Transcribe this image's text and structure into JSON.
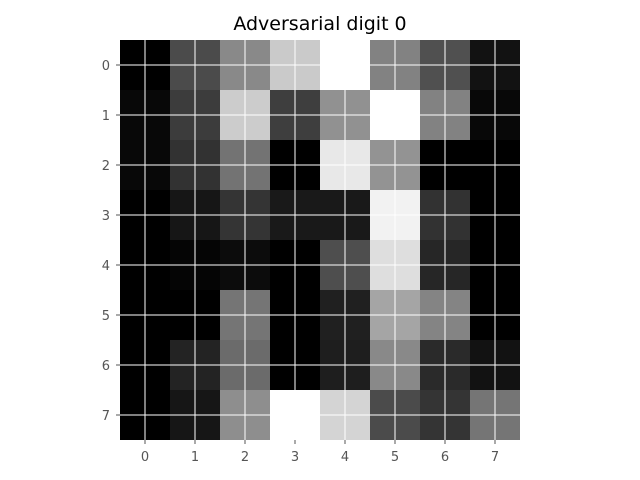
{
  "chart_data": {
    "type": "heatmap",
    "title": "Adversarial digit 0",
    "xlabel": "",
    "ylabel": "",
    "x_ticks": [
      "0",
      "1",
      "2",
      "3",
      "4",
      "5",
      "6",
      "7"
    ],
    "y_ticks": [
      "0",
      "1",
      "2",
      "3",
      "4",
      "5",
      "6",
      "7"
    ],
    "colormap": "gray",
    "grid": true,
    "grid_color": "#ffffff",
    "value_range": [
      0,
      255
    ],
    "values": [
      [
        0,
        75,
        137,
        202,
        255,
        130,
        80,
        18
      ],
      [
        8,
        60,
        204,
        62,
        145,
        255,
        130,
        8
      ],
      [
        8,
        50,
        115,
        0,
        232,
        147,
        0,
        0
      ],
      [
        0,
        22,
        52,
        25,
        25,
        242,
        50,
        0
      ],
      [
        0,
        5,
        12,
        0,
        78,
        222,
        38,
        0
      ],
      [
        0,
        0,
        117,
        0,
        32,
        165,
        132,
        0
      ],
      [
        0,
        35,
        107,
        0,
        30,
        137,
        42,
        18
      ],
      [
        0,
        22,
        142,
        255,
        212,
        75,
        52,
        117
      ]
    ]
  }
}
